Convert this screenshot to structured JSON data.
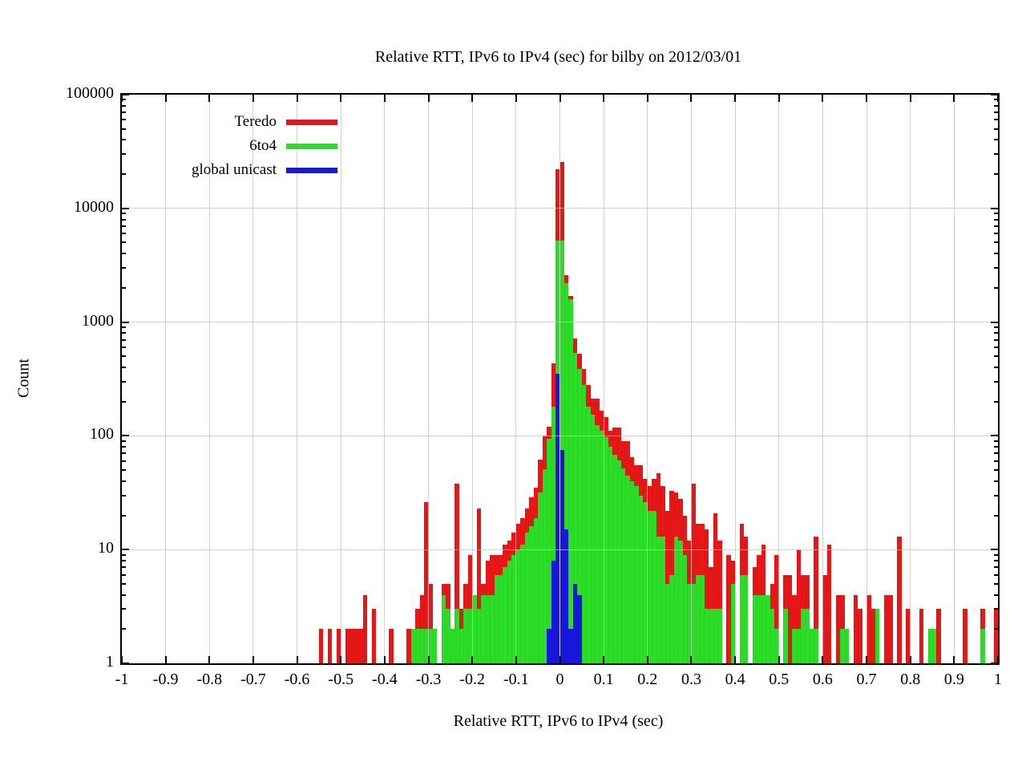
{
  "chart_data": {
    "type": "bar",
    "subtype": "log-histogram",
    "title": "Relative RTT, IPv6 to IPv4 (sec) for bilby on 2012/03/01",
    "xlabel": "Relative RTT, IPv6 to IPv4 (sec)",
    "ylabel": "Count",
    "grid": true,
    "legend_position": "top-left-inside",
    "bin_width": 0.01,
    "x_axis": {
      "min": -1,
      "max": 1,
      "ticks": [
        -1,
        -0.9,
        -0.8,
        -0.7,
        -0.6,
        -0.5,
        -0.4,
        -0.3,
        -0.2,
        -0.1,
        0,
        0.1,
        0.2,
        0.3,
        0.4,
        0.5,
        0.6,
        0.7,
        0.8,
        0.9,
        1
      ],
      "tick_labels": [
        "-1",
        "-0.9",
        "-0.8",
        "-0.7",
        "-0.6",
        "-0.5",
        "-0.4",
        "-0.3",
        "-0.2",
        "-0.1",
        "0",
        "0.1",
        "0.2",
        "0.3",
        "0.4",
        "0.5",
        "0.6",
        "0.7",
        "0.8",
        "0.9",
        "1"
      ]
    },
    "y_axis": {
      "min": 1,
      "max": 100000,
      "scale": "log10",
      "ticks": [
        1,
        10,
        100,
        1000,
        10000,
        100000
      ],
      "tick_labels": [
        "1",
        "10",
        "100",
        "1000",
        "10000",
        "100000"
      ]
    },
    "legend": [
      {
        "id": "teredo",
        "label": "Teredo",
        "color": "#e81717"
      },
      {
        "id": "6to4",
        "label": "6to4",
        "color": "#2cdd28"
      },
      {
        "id": "global-unicast",
        "label": "global unicast",
        "color": "#1717dd"
      }
    ],
    "series": [
      {
        "id": "teredo",
        "name": "Teredo",
        "color": "#e81717",
        "bins": [
          [
            -0.545,
            2
          ],
          [
            -0.525,
            2
          ],
          [
            -0.505,
            2
          ],
          [
            -0.485,
            2
          ],
          [
            -0.475,
            2
          ],
          [
            -0.465,
            2
          ],
          [
            -0.455,
            2
          ],
          [
            -0.445,
            4
          ],
          [
            -0.425,
            3
          ],
          [
            -0.385,
            2
          ],
          [
            -0.345,
            2
          ],
          [
            -0.335,
            2
          ],
          [
            -0.325,
            3
          ],
          [
            -0.315,
            4
          ],
          [
            -0.305,
            26
          ],
          [
            -0.295,
            5
          ],
          [
            -0.265,
            5
          ],
          [
            -0.255,
            5
          ],
          [
            -0.235,
            38
          ],
          [
            -0.225,
            3
          ],
          [
            -0.215,
            5
          ],
          [
            -0.205,
            9
          ],
          [
            -0.195,
            4
          ],
          [
            -0.185,
            23
          ],
          [
            -0.175,
            5
          ],
          [
            -0.165,
            8
          ],
          [
            -0.155,
            9
          ],
          [
            -0.145,
            9
          ],
          [
            -0.135,
            9
          ],
          [
            -0.125,
            11
          ],
          [
            -0.115,
            12
          ],
          [
            -0.105,
            14
          ],
          [
            -0.095,
            17
          ],
          [
            -0.085,
            19
          ],
          [
            -0.075,
            23
          ],
          [
            -0.065,
            29
          ],
          [
            -0.055,
            35
          ],
          [
            -0.045,
            62
          ],
          [
            -0.035,
            100
          ],
          [
            -0.025,
            120
          ],
          [
            -0.015,
            435
          ],
          [
            -0.005,
            22000
          ],
          [
            0.005,
            25500
          ],
          [
            0.015,
            2600
          ],
          [
            0.025,
            1700
          ],
          [
            0.035,
            720
          ],
          [
            0.045,
            530
          ],
          [
            0.055,
            385
          ],
          [
            0.065,
            280
          ],
          [
            0.075,
            212
          ],
          [
            0.085,
            212
          ],
          [
            0.095,
            167
          ],
          [
            0.105,
            146
          ],
          [
            0.115,
            111
          ],
          [
            0.125,
            118
          ],
          [
            0.135,
            118
          ],
          [
            0.145,
            90
          ],
          [
            0.155,
            90
          ],
          [
            0.165,
            65
          ],
          [
            0.175,
            55
          ],
          [
            0.185,
            55
          ],
          [
            0.195,
            42
          ],
          [
            0.205,
            36
          ],
          [
            0.215,
            42
          ],
          [
            0.225,
            47
          ],
          [
            0.235,
            36
          ],
          [
            0.245,
            22
          ],
          [
            0.255,
            33
          ],
          [
            0.265,
            32
          ],
          [
            0.275,
            28
          ],
          [
            0.285,
            20
          ],
          [
            0.295,
            12
          ],
          [
            0.305,
            38
          ],
          [
            0.315,
            17
          ],
          [
            0.325,
            17
          ],
          [
            0.335,
            15
          ],
          [
            0.345,
            7
          ],
          [
            0.355,
            21
          ],
          [
            0.365,
            12
          ],
          [
            0.385,
            9
          ],
          [
            0.395,
            8
          ],
          [
            0.415,
            17
          ],
          [
            0.425,
            13
          ],
          [
            0.445,
            7
          ],
          [
            0.455,
            9
          ],
          [
            0.465,
            11
          ],
          [
            0.485,
            5
          ],
          [
            0.495,
            9
          ],
          [
            0.515,
            6
          ],
          [
            0.525,
            6
          ],
          [
            0.535,
            4
          ],
          [
            0.545,
            10
          ],
          [
            0.555,
            6
          ],
          [
            0.565,
            6
          ],
          [
            0.585,
            13
          ],
          [
            0.605,
            6
          ],
          [
            0.615,
            11
          ],
          [
            0.635,
            4
          ],
          [
            0.645,
            4
          ],
          [
            0.675,
            4
          ],
          [
            0.685,
            3
          ],
          [
            0.705,
            4
          ],
          [
            0.715,
            3
          ],
          [
            0.745,
            4
          ],
          [
            0.755,
            4
          ],
          [
            0.775,
            13
          ],
          [
            0.795,
            3
          ],
          [
            0.825,
            3
          ],
          [
            0.845,
            2
          ],
          [
            0.865,
            3
          ],
          [
            0.925,
            3
          ],
          [
            0.965,
            3
          ],
          [
            0.995,
            3
          ]
        ]
      },
      {
        "id": "6to4",
        "name": "6to4",
        "color": "#2cdd28",
        "bins": [
          [
            -0.335,
            2
          ],
          [
            -0.325,
            2
          ],
          [
            -0.315,
            2
          ],
          [
            -0.305,
            2
          ],
          [
            -0.295,
            2
          ],
          [
            -0.285,
            2
          ],
          [
            -0.265,
            4
          ],
          [
            -0.255,
            3
          ],
          [
            -0.245,
            2
          ],
          [
            -0.235,
            3
          ],
          [
            -0.225,
            2
          ],
          [
            -0.215,
            3
          ],
          [
            -0.205,
            3
          ],
          [
            -0.195,
            4
          ],
          [
            -0.185,
            3
          ],
          [
            -0.175,
            4
          ],
          [
            -0.165,
            4
          ],
          [
            -0.155,
            4
          ],
          [
            -0.145,
            6
          ],
          [
            -0.135,
            6
          ],
          [
            -0.125,
            7
          ],
          [
            -0.115,
            8
          ],
          [
            -0.105,
            9
          ],
          [
            -0.095,
            10
          ],
          [
            -0.085,
            11
          ],
          [
            -0.075,
            14
          ],
          [
            -0.065,
            16
          ],
          [
            -0.055,
            19
          ],
          [
            -0.045,
            32
          ],
          [
            -0.035,
            51
          ],
          [
            -0.025,
            94
          ],
          [
            -0.015,
            180
          ],
          [
            -0.005,
            5200
          ],
          [
            0.005,
            5200
          ],
          [
            0.015,
            2200
          ],
          [
            0.025,
            1600
          ],
          [
            0.035,
            535
          ],
          [
            0.045,
            385
          ],
          [
            0.055,
            280
          ],
          [
            0.065,
            180
          ],
          [
            0.075,
            154
          ],
          [
            0.085,
            125
          ],
          [
            0.095,
            111
          ],
          [
            0.105,
            97
          ],
          [
            0.115,
            80
          ],
          [
            0.125,
            68
          ],
          [
            0.135,
            61
          ],
          [
            0.145,
            52
          ],
          [
            0.155,
            45
          ],
          [
            0.165,
            40
          ],
          [
            0.175,
            36
          ],
          [
            0.185,
            30
          ],
          [
            0.195,
            26
          ],
          [
            0.205,
            22
          ],
          [
            0.215,
            22
          ],
          [
            0.225,
            13
          ],
          [
            0.235,
            13
          ],
          [
            0.245,
            5
          ],
          [
            0.255,
            6
          ],
          [
            0.265,
            13
          ],
          [
            0.275,
            12
          ],
          [
            0.285,
            9
          ],
          [
            0.295,
            5
          ],
          [
            0.305,
            5
          ],
          [
            0.315,
            6
          ],
          [
            0.325,
            6
          ],
          [
            0.335,
            3
          ],
          [
            0.345,
            3
          ],
          [
            0.355,
            3
          ],
          [
            0.365,
            3
          ],
          [
            0.395,
            5
          ],
          [
            0.415,
            6
          ],
          [
            0.425,
            6
          ],
          [
            0.445,
            4
          ],
          [
            0.455,
            4
          ],
          [
            0.465,
            4
          ],
          [
            0.475,
            4
          ],
          [
            0.485,
            3
          ],
          [
            0.495,
            2
          ],
          [
            0.515,
            3
          ],
          [
            0.535,
            2
          ],
          [
            0.545,
            2
          ],
          [
            0.555,
            3
          ],
          [
            0.565,
            3
          ],
          [
            0.575,
            2
          ],
          [
            0.585,
            2
          ],
          [
            0.645,
            2
          ],
          [
            0.655,
            2
          ],
          [
            0.725,
            3
          ],
          [
            0.845,
            2
          ],
          [
            0.855,
            2
          ],
          [
            0.965,
            2
          ]
        ]
      },
      {
        "id": "global-unicast",
        "name": "global unicast",
        "color": "#1717dd",
        "bins": [
          [
            -0.025,
            2
          ],
          [
            -0.015,
            8
          ],
          [
            -0.005,
            350
          ],
          [
            0.005,
            75
          ],
          [
            0.015,
            15
          ],
          [
            0.025,
            2
          ],
          [
            0.035,
            5
          ],
          [
            0.045,
            4
          ]
        ]
      }
    ]
  }
}
